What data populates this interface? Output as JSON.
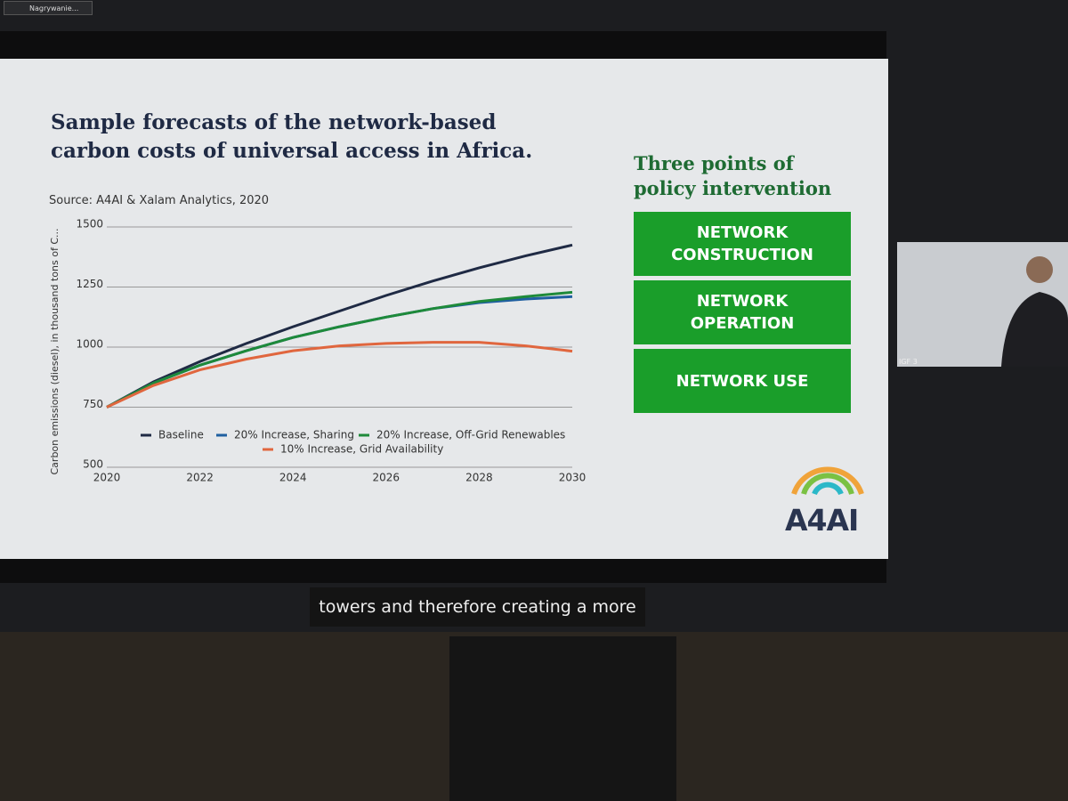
{
  "recording_badge": "Nagrywanie...",
  "chart_data": {
    "type": "line",
    "title": "Sample forecasts of the network-based carbon costs of universal access in Africa.",
    "subtitle": "Source: A4AI & Xalam Analytics, 2020",
    "y_label": "Carbon emissions (diesel), in thousand tons of C...",
    "x": [
      2020,
      2021,
      2022,
      2023,
      2024,
      2025,
      2026,
      2027,
      2028,
      2029,
      2030
    ],
    "xlim": [
      2020,
      2030
    ],
    "xticks": [
      2020,
      2022,
      2024,
      2026,
      2028,
      2030
    ],
    "ylim": [
      500,
      1500
    ],
    "yticks": [
      500,
      750,
      1000,
      1250,
      1500
    ],
    "grid": true,
    "legend": "bottom",
    "series": [
      {
        "name": "Baseline",
        "color": "#1f2a44",
        "values": [
          750,
          855,
          940,
          1015,
          1085,
          1150,
          1215,
          1275,
          1330,
          1380,
          1425
        ]
      },
      {
        "name": "20% Increase, Sharing",
        "color": "#1f5fa0",
        "values": [
          750,
          850,
          925,
          985,
          1040,
          1085,
          1125,
          1160,
          1185,
          1200,
          1210
        ]
      },
      {
        "name": "20% Increase, Off-Grid Renewables",
        "color": "#1e8a3a",
        "values": [
          750,
          850,
          925,
          985,
          1040,
          1085,
          1125,
          1160,
          1190,
          1210,
          1228
        ]
      },
      {
        "name": "10% Increase, Grid Availability",
        "color": "#e0663e",
        "values": [
          750,
          840,
          905,
          950,
          985,
          1005,
          1015,
          1020,
          1020,
          1005,
          983
        ]
      }
    ]
  },
  "sidebar": {
    "heading": "Three points of policy intervention",
    "items": [
      "NETWORK CONSTRUCTION",
      "NETWORK OPERATION",
      "NETWORK USE"
    ]
  },
  "logo": "A4AI",
  "video": {
    "label": "IGF 3"
  },
  "caption": "towers and therefore creating a more"
}
